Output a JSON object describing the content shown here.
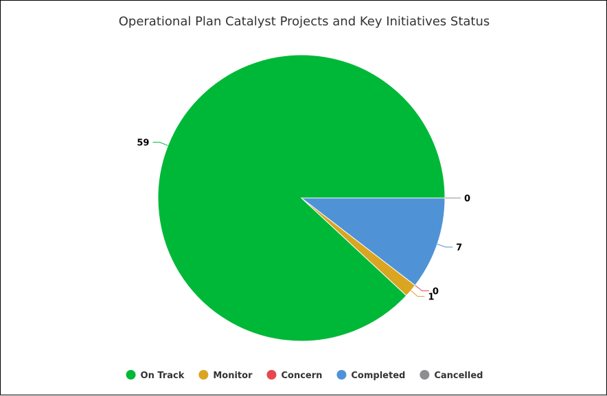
{
  "chart_data": {
    "type": "pie",
    "title": "Operational Plan Catalyst Projects and Key Initiatives Status",
    "categories": [
      "On Track",
      "Monitor",
      "Concern",
      "Completed",
      "Cancelled"
    ],
    "values": [
      59,
      1,
      0,
      7,
      0
    ],
    "colors": [
      "#00b838",
      "#daa520",
      "#e8474f",
      "#4f93d6",
      "#8e8e92"
    ],
    "legend_position": "bottom"
  }
}
